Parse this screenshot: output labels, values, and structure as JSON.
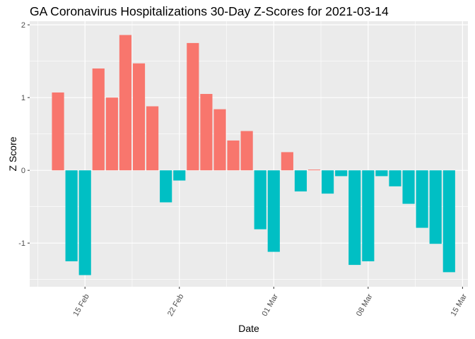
{
  "chart_data": {
    "type": "bar",
    "title": "GA Coronavirus Hospitalizations 30-Day Z-Scores for 2021-03-14",
    "xlabel": "Date",
    "ylabel": "Z Score",
    "ylim": [
      -1.6,
      2.05
    ],
    "y_ticks": [
      -1,
      0,
      1,
      2
    ],
    "y_tick_labels": [
      "-1",
      "0",
      "1",
      "2"
    ],
    "x_ticks": [
      {
        "day": 0,
        "label": "15 Feb"
      },
      {
        "day": 7,
        "label": "22 Feb"
      },
      {
        "day": 14,
        "label": "01 Mar"
      },
      {
        "day": 21,
        "label": "08 Mar"
      },
      {
        "day": 28,
        "label": "15 Mar"
      }
    ],
    "x_range_days": [
      -4.1,
      28.4
    ],
    "grid": true,
    "fill_colors": {
      "positive": "#F8766D",
      "negative": "#00BFC4"
    },
    "dates": [
      "2021-02-13",
      "2021-02-14",
      "2021-02-15",
      "2021-02-16",
      "2021-02-17",
      "2021-02-18",
      "2021-02-19",
      "2021-02-20",
      "2021-02-21",
      "2021-02-22",
      "2021-02-23",
      "2021-02-24",
      "2021-02-25",
      "2021-02-26",
      "2021-02-27",
      "2021-02-28",
      "2021-03-01",
      "2021-03-02",
      "2021-03-03",
      "2021-03-04",
      "2021-03-05",
      "2021-03-06",
      "2021-03-07",
      "2021-03-08",
      "2021-03-09",
      "2021-03-10",
      "2021-03-11",
      "2021-03-12",
      "2021-03-13",
      "2021-03-14"
    ],
    "values": [
      1.07,
      -1.25,
      -1.44,
      1.4,
      1.0,
      1.86,
      1.47,
      0.88,
      -0.44,
      -0.14,
      1.75,
      1.05,
      0.84,
      0.41,
      0.54,
      -0.81,
      -1.12,
      0.25,
      -0.29,
      0.01,
      -0.32,
      -0.08,
      -1.3,
      -1.25,
      -0.08,
      -0.22,
      -0.46,
      -0.79,
      -1.01,
      -1.4
    ]
  }
}
